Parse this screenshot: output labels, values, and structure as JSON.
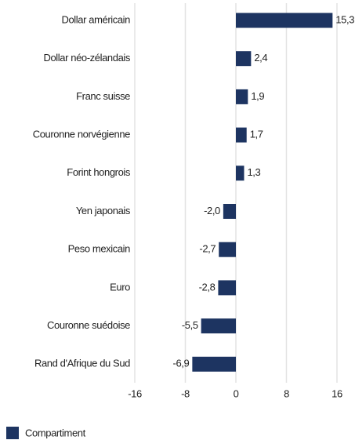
{
  "chart_data": {
    "type": "barh",
    "categories": [
      "Dollar américain",
      "Dollar néo-zélandais",
      "Franc suisse",
      "Couronne norvégienne",
      "Forint hongrois",
      "Yen japonais",
      "Peso mexicain",
      "Euro",
      "Couronne suédoise",
      "Rand d'Afrique du Sud"
    ],
    "series": [
      {
        "name": "Compartiment",
        "color": "#1d3461",
        "values": [
          15.3,
          2.4,
          1.9,
          1.7,
          1.3,
          -2.0,
          -2.7,
          -2.8,
          -5.5,
          -6.9
        ],
        "value_labels": [
          "15,3",
          "2,4",
          "1,9",
          "1,7",
          "1,3",
          "-2,0",
          "-2,7",
          "-2,8",
          "-5,5",
          "-6,9"
        ]
      }
    ],
    "xlim": [
      -16,
      16
    ],
    "xticks": [
      -16,
      -8,
      0,
      8,
      16
    ],
    "grid": true,
    "legend": "bottom-left"
  }
}
